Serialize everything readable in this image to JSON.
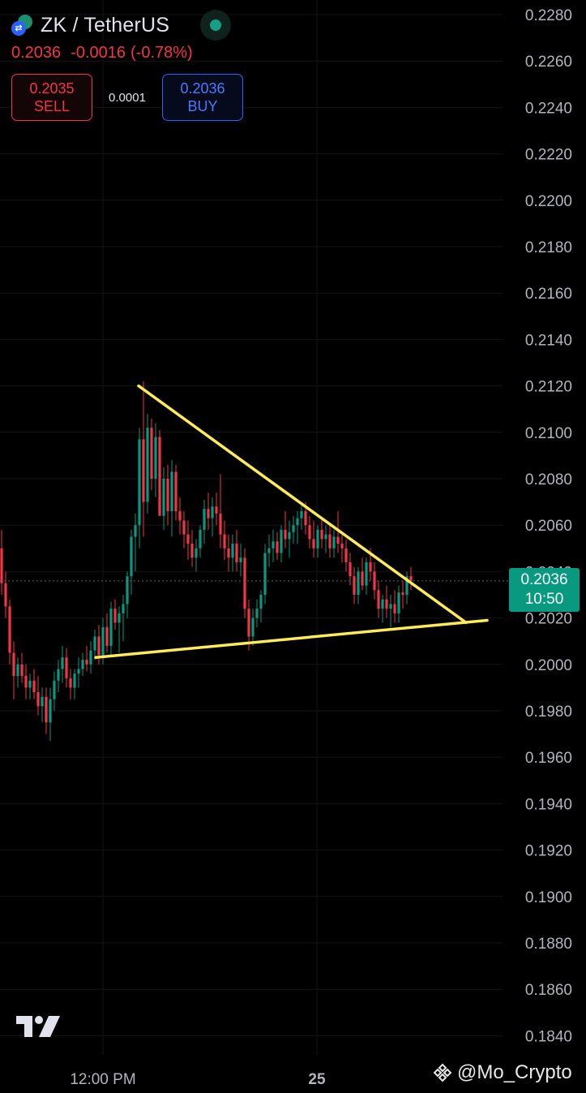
{
  "header": {
    "symbol": "ZK / TetherUS",
    "icon": "zk-usdt-pair-icon",
    "last": "0.2036",
    "change": "-0.0016",
    "change_pct": "(-0.78%)",
    "sell_price": "0.2035",
    "sell_label": "SELL",
    "spread": "0.0001",
    "buy_price": "0.2036",
    "buy_label": "BUY"
  },
  "price_tag": {
    "price": "0.2036",
    "countdown": "10:50"
  },
  "watermark": "@Mo_Crypto",
  "colors": {
    "up": "#089981",
    "down": "#f23645",
    "trendline": "#ffeb5a",
    "background": "#000000"
  },
  "chart_data": {
    "type": "candlestick",
    "title": "",
    "x_ticks": [
      "12:00 PM",
      "25"
    ],
    "y_ticks": [
      "0.2280",
      "0.2260",
      "0.2240",
      "0.2220",
      "0.2200",
      "0.2180",
      "0.2160",
      "0.2140",
      "0.2120",
      "0.2100",
      "0.2080",
      "0.2060",
      "0.2040",
      "0.2020",
      "0.2000",
      "0.1980",
      "0.1960",
      "0.1940",
      "0.1920",
      "0.1900",
      "0.1880",
      "0.1860",
      "0.1840"
    ],
    "ylim": [
      0.1832,
      0.2285
    ],
    "last_price": 0.2036,
    "candles_ohlc": [
      [
        0.205,
        0.2058,
        0.203,
        0.2035
      ],
      [
        0.2035,
        0.204,
        0.202,
        0.2025
      ],
      [
        0.2025,
        0.2028,
        0.2,
        0.2005
      ],
      [
        0.2005,
        0.201,
        0.1985,
        0.1995
      ],
      [
        0.1995,
        0.2003,
        0.199,
        0.2
      ],
      [
        0.2,
        0.2005,
        0.1992,
        0.1995
      ],
      [
        0.1995,
        0.2,
        0.1985,
        0.199
      ],
      [
        0.199,
        0.1996,
        0.1985,
        0.1993
      ],
      [
        0.1993,
        0.1998,
        0.1985,
        0.1988
      ],
      [
        0.1988,
        0.1995,
        0.1978,
        0.1982
      ],
      [
        0.1982,
        0.199,
        0.1975,
        0.1986
      ],
      [
        0.1986,
        0.199,
        0.197,
        0.1975
      ],
      [
        0.1975,
        0.199,
        0.1967,
        0.1985
      ],
      [
        0.1985,
        0.1997,
        0.198,
        0.1993
      ],
      [
        0.1993,
        0.2002,
        0.1988,
        0.1998
      ],
      [
        0.1998,
        0.2008,
        0.1992,
        0.2003
      ],
      [
        0.2003,
        0.2007,
        0.199,
        0.1994
      ],
      [
        0.1994,
        0.1998,
        0.1985,
        0.199
      ],
      [
        0.199,
        0.1998,
        0.1985,
        0.1996
      ],
      [
        0.1996,
        0.2003,
        0.199,
        0.1998
      ],
      [
        0.1998,
        0.2005,
        0.1995,
        0.2002
      ],
      [
        0.2002,
        0.2008,
        0.1997,
        0.2
      ],
      [
        0.2,
        0.201,
        0.1996,
        0.2006
      ],
      [
        0.2006,
        0.2015,
        0.2002,
        0.2012
      ],
      [
        0.2012,
        0.2017,
        0.2,
        0.2004
      ],
      [
        0.2004,
        0.202,
        0.2,
        0.2016
      ],
      [
        0.2016,
        0.2022,
        0.2005,
        0.2008
      ],
      [
        0.2008,
        0.2027,
        0.2004,
        0.2024
      ],
      [
        0.2024,
        0.2028,
        0.2015,
        0.2018
      ],
      [
        0.2018,
        0.2025,
        0.2005,
        0.2022
      ],
      [
        0.2022,
        0.203,
        0.201,
        0.2026
      ],
      [
        0.2026,
        0.204,
        0.202,
        0.2038
      ],
      [
        0.2038,
        0.2058,
        0.203,
        0.2055
      ],
      [
        0.2055,
        0.2065,
        0.204,
        0.206
      ],
      [
        0.206,
        0.2102,
        0.205,
        0.2097
      ],
      [
        0.2097,
        0.2122,
        0.2055,
        0.207
      ],
      [
        0.207,
        0.2108,
        0.2065,
        0.2102
      ],
      [
        0.2102,
        0.2106,
        0.2075,
        0.208
      ],
      [
        0.208,
        0.2104,
        0.2072,
        0.2098
      ],
      [
        0.2098,
        0.2101,
        0.207,
        0.2064
      ],
      [
        0.2064,
        0.2085,
        0.2058,
        0.208
      ],
      [
        0.208,
        0.2086,
        0.206,
        0.2066
      ],
      [
        0.2066,
        0.2088,
        0.2055,
        0.2083
      ],
      [
        0.2083,
        0.2086,
        0.2062,
        0.2066
      ],
      [
        0.2066,
        0.2072,
        0.2056,
        0.2062
      ],
      [
        0.2062,
        0.2066,
        0.205,
        0.2056
      ],
      [
        0.2056,
        0.2062,
        0.2045,
        0.2052
      ],
      [
        0.2052,
        0.2058,
        0.2042,
        0.2046
      ],
      [
        0.2046,
        0.2054,
        0.204,
        0.205
      ],
      [
        0.205,
        0.206,
        0.2046,
        0.2058
      ],
      [
        0.2058,
        0.2071,
        0.2052,
        0.2067
      ],
      [
        0.2067,
        0.2074,
        0.2058,
        0.2063
      ],
      [
        0.2063,
        0.2072,
        0.2055,
        0.2068
      ],
      [
        0.2068,
        0.2074,
        0.206,
        0.2065
      ],
      [
        0.2065,
        0.2082,
        0.205,
        0.2056
      ],
      [
        0.2056,
        0.2062,
        0.2045,
        0.205
      ],
      [
        0.205,
        0.2056,
        0.204,
        0.2046
      ],
      [
        0.2046,
        0.2056,
        0.204,
        0.2052
      ],
      [
        0.2052,
        0.2058,
        0.204,
        0.2044
      ],
      [
        0.2044,
        0.2052,
        0.2038,
        0.2046
      ],
      [
        0.2046,
        0.205,
        0.202,
        0.2024
      ],
      [
        0.2024,
        0.2028,
        0.2006,
        0.2012
      ],
      [
        0.2012,
        0.2024,
        0.2008,
        0.202
      ],
      [
        0.202,
        0.2028,
        0.2016,
        0.2024
      ],
      [
        0.2024,
        0.2032,
        0.2018,
        0.203
      ],
      [
        0.203,
        0.2052,
        0.2026,
        0.2048
      ],
      [
        0.2048,
        0.2056,
        0.2042,
        0.205
      ],
      [
        0.205,
        0.2058,
        0.2044,
        0.2053
      ],
      [
        0.2053,
        0.2057,
        0.2045,
        0.2048
      ],
      [
        0.2048,
        0.206,
        0.2044,
        0.2058
      ],
      [
        0.2058,
        0.2066,
        0.205,
        0.2054
      ],
      [
        0.2054,
        0.2062,
        0.2046,
        0.2057
      ],
      [
        0.2057,
        0.2064,
        0.2052,
        0.206
      ],
      [
        0.206,
        0.2066,
        0.2052,
        0.2063
      ],
      [
        0.2063,
        0.207,
        0.2058,
        0.2066
      ],
      [
        0.2066,
        0.207,
        0.2056,
        0.206
      ],
      [
        0.206,
        0.2064,
        0.205,
        0.2054
      ],
      [
        0.2054,
        0.2062,
        0.2046,
        0.205
      ],
      [
        0.205,
        0.206,
        0.2046,
        0.2058
      ],
      [
        0.2058,
        0.2063,
        0.205,
        0.2054
      ],
      [
        0.2054,
        0.206,
        0.2048,
        0.2056
      ],
      [
        0.2056,
        0.206,
        0.2046,
        0.205
      ],
      [
        0.205,
        0.2058,
        0.2046,
        0.2055
      ],
      [
        0.2055,
        0.2066,
        0.2048,
        0.2052
      ],
      [
        0.2052,
        0.2056,
        0.2044,
        0.205
      ],
      [
        0.205,
        0.2054,
        0.204,
        0.2044
      ],
      [
        0.2044,
        0.2048,
        0.2034,
        0.2038
      ],
      [
        0.2038,
        0.2042,
        0.2026,
        0.203
      ],
      [
        0.203,
        0.2042,
        0.2026,
        0.204
      ],
      [
        0.204,
        0.2046,
        0.2032,
        0.2034
      ],
      [
        0.2034,
        0.2046,
        0.203,
        0.2044
      ],
      [
        0.2044,
        0.205,
        0.2036,
        0.204
      ],
      [
        0.204,
        0.2044,
        0.2028,
        0.2032
      ],
      [
        0.2032,
        0.2036,
        0.202,
        0.2024
      ],
      [
        0.2024,
        0.203,
        0.2018,
        0.2028
      ],
      [
        0.2028,
        0.2034,
        0.202,
        0.2024
      ],
      [
        0.2024,
        0.203,
        0.2016,
        0.2026
      ],
      [
        0.2026,
        0.2032,
        0.2018,
        0.2022
      ],
      [
        0.2022,
        0.2034,
        0.2018,
        0.2031
      ],
      [
        0.2031,
        0.2036,
        0.2024,
        0.203
      ],
      [
        0.203,
        0.204,
        0.2026,
        0.2038
      ],
      [
        0.2038,
        0.2042,
        0.2032,
        0.2036
      ]
    ]
  }
}
